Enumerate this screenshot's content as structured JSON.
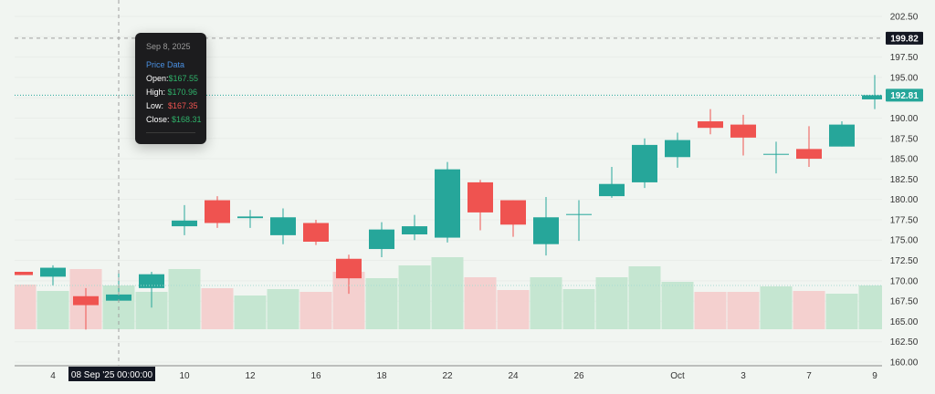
{
  "chart_data": {
    "type": "candlestick",
    "ylim": [
      160,
      202.5
    ],
    "y_ticks": [
      "202.50",
      "197.50",
      "195.00",
      "190.00",
      "187.50",
      "185.00",
      "182.50",
      "180.00",
      "177.50",
      "175.00",
      "172.50",
      "170.00",
      "167.50",
      "165.00",
      "162.50",
      "160.00"
    ],
    "x_ticks": [
      {
        "label": "4",
        "date": "2025-09-04"
      },
      {
        "label": "10",
        "date": "2025-09-10"
      },
      {
        "label": "12",
        "date": "2025-09-12"
      },
      {
        "label": "16",
        "date": "2025-09-16"
      },
      {
        "label": "18",
        "date": "2025-09-18"
      },
      {
        "label": "22",
        "date": "2025-09-22"
      },
      {
        "label": "24",
        "date": "2025-09-24"
      },
      {
        "label": "26",
        "date": "2025-09-26"
      },
      {
        "label": "Oct",
        "date": "2025-10-01"
      },
      {
        "label": "3",
        "date": "2025-10-03"
      },
      {
        "label": "7",
        "date": "2025-10-07"
      },
      {
        "label": "9",
        "date": "2025-10-09"
      }
    ],
    "grid": true,
    "colors": {
      "up": "#26a69a",
      "down": "#ef5350",
      "volume_up": "#c5e6d1",
      "volume_down": "#f4d0cf",
      "background": "#f1f5f1"
    },
    "candles": [
      {
        "date": "2025-09-03",
        "open": 171.1,
        "high": 171.1,
        "low": 170.7,
        "close": 170.7,
        "volume": 49
      },
      {
        "date": "2025-09-04",
        "open": 170.5,
        "high": 171.9,
        "low": 169.4,
        "close": 171.6,
        "volume": 42
      },
      {
        "date": "2025-09-05",
        "open": 168.1,
        "high": 169.1,
        "low": 164.0,
        "close": 167.0,
        "volume": 66
      },
      {
        "date": "2025-09-08",
        "open": 167.55,
        "high": 170.96,
        "low": 167.35,
        "close": 168.31,
        "volume": 48
      },
      {
        "date": "2025-09-09",
        "open": 169.1,
        "high": 171.1,
        "low": 166.7,
        "close": 170.8,
        "volume": 41
      },
      {
        "date": "2025-09-10",
        "open": 176.7,
        "high": 179.3,
        "low": 175.6,
        "close": 177.4,
        "volume": 66
      },
      {
        "date": "2025-09-11",
        "open": 179.9,
        "high": 180.4,
        "low": 176.5,
        "close": 177.1,
        "volume": 45
      },
      {
        "date": "2025-09-12",
        "open": 177.7,
        "high": 178.7,
        "low": 176.5,
        "close": 177.9,
        "volume": 37
      },
      {
        "date": "2025-09-15",
        "open": 175.6,
        "high": 178.9,
        "low": 174.5,
        "close": 177.8,
        "volume": 44
      },
      {
        "date": "2025-09-16",
        "open": 177.1,
        "high": 177.5,
        "low": 174.4,
        "close": 174.8,
        "volume": 41
      },
      {
        "date": "2025-09-17",
        "open": 172.7,
        "high": 173.2,
        "low": 168.4,
        "close": 170.3,
        "volume": 63
      },
      {
        "date": "2025-09-18",
        "open": 173.9,
        "high": 177.2,
        "low": 172.9,
        "close": 176.3,
        "volume": 56
      },
      {
        "date": "2025-09-19",
        "open": 175.7,
        "high": 178.1,
        "low": 175.0,
        "close": 176.7,
        "volume": 70
      },
      {
        "date": "2025-09-22",
        "open": 175.3,
        "high": 184.6,
        "low": 174.7,
        "close": 183.7,
        "volume": 79
      },
      {
        "date": "2025-09-23",
        "open": 182.1,
        "high": 182.4,
        "low": 176.2,
        "close": 178.4,
        "volume": 57
      },
      {
        "date": "2025-09-24",
        "open": 179.9,
        "high": 179.9,
        "low": 175.4,
        "close": 176.9,
        "volume": 43
      },
      {
        "date": "2025-09-25",
        "open": 174.5,
        "high": 180.3,
        "low": 173.1,
        "close": 177.8,
        "volume": 57
      },
      {
        "date": "2025-09-26",
        "open": 178.1,
        "high": 179.9,
        "low": 174.9,
        "close": 178.2,
        "volume": 44
      },
      {
        "date": "2025-09-29",
        "open": 180.4,
        "high": 184.0,
        "low": 180.2,
        "close": 181.9,
        "volume": 57
      },
      {
        "date": "2025-09-30",
        "open": 182.1,
        "high": 187.5,
        "low": 181.4,
        "close": 186.7,
        "volume": 69
      },
      {
        "date": "2025-10-01",
        "open": 185.2,
        "high": 188.2,
        "low": 183.9,
        "close": 187.3,
        "volume": 52
      },
      {
        "date": "2025-10-02",
        "open": 189.6,
        "high": 191.1,
        "low": 188.0,
        "close": 188.8,
        "volume": 41
      },
      {
        "date": "2025-10-03",
        "open": 189.2,
        "high": 190.4,
        "low": 185.4,
        "close": 187.6,
        "volume": 41
      },
      {
        "date": "2025-10-06",
        "open": 185.5,
        "high": 187.1,
        "low": 183.2,
        "close": 185.6,
        "volume": 47
      },
      {
        "date": "2025-10-07",
        "open": 186.2,
        "high": 189.0,
        "low": 184.0,
        "close": 185.0,
        "volume": 42
      },
      {
        "date": "2025-10-08",
        "open": 186.5,
        "high": 189.6,
        "low": 186.5,
        "close": 189.2,
        "volume": 39
      },
      {
        "date": "2025-10-09",
        "open": 192.3,
        "high": 195.3,
        "low": 191.1,
        "close": 192.81,
        "volume": 48
      }
    ],
    "crosshair": {
      "price_label": "199.82",
      "price": 199.82,
      "time_label": "08 Sep '25   00:00:00",
      "date": "2025-09-08"
    },
    "last_price": {
      "label": "192.81",
      "price": 192.81
    }
  },
  "tooltip": {
    "date": "Sep 8, 2025",
    "title": "Price Data",
    "open_label": "Open:",
    "open": "$167.55",
    "high_label": "High:",
    "high": "$170.96",
    "low_label": "Low:",
    "low": "$167.35",
    "close_label": "Close:",
    "close": "$168.31"
  }
}
